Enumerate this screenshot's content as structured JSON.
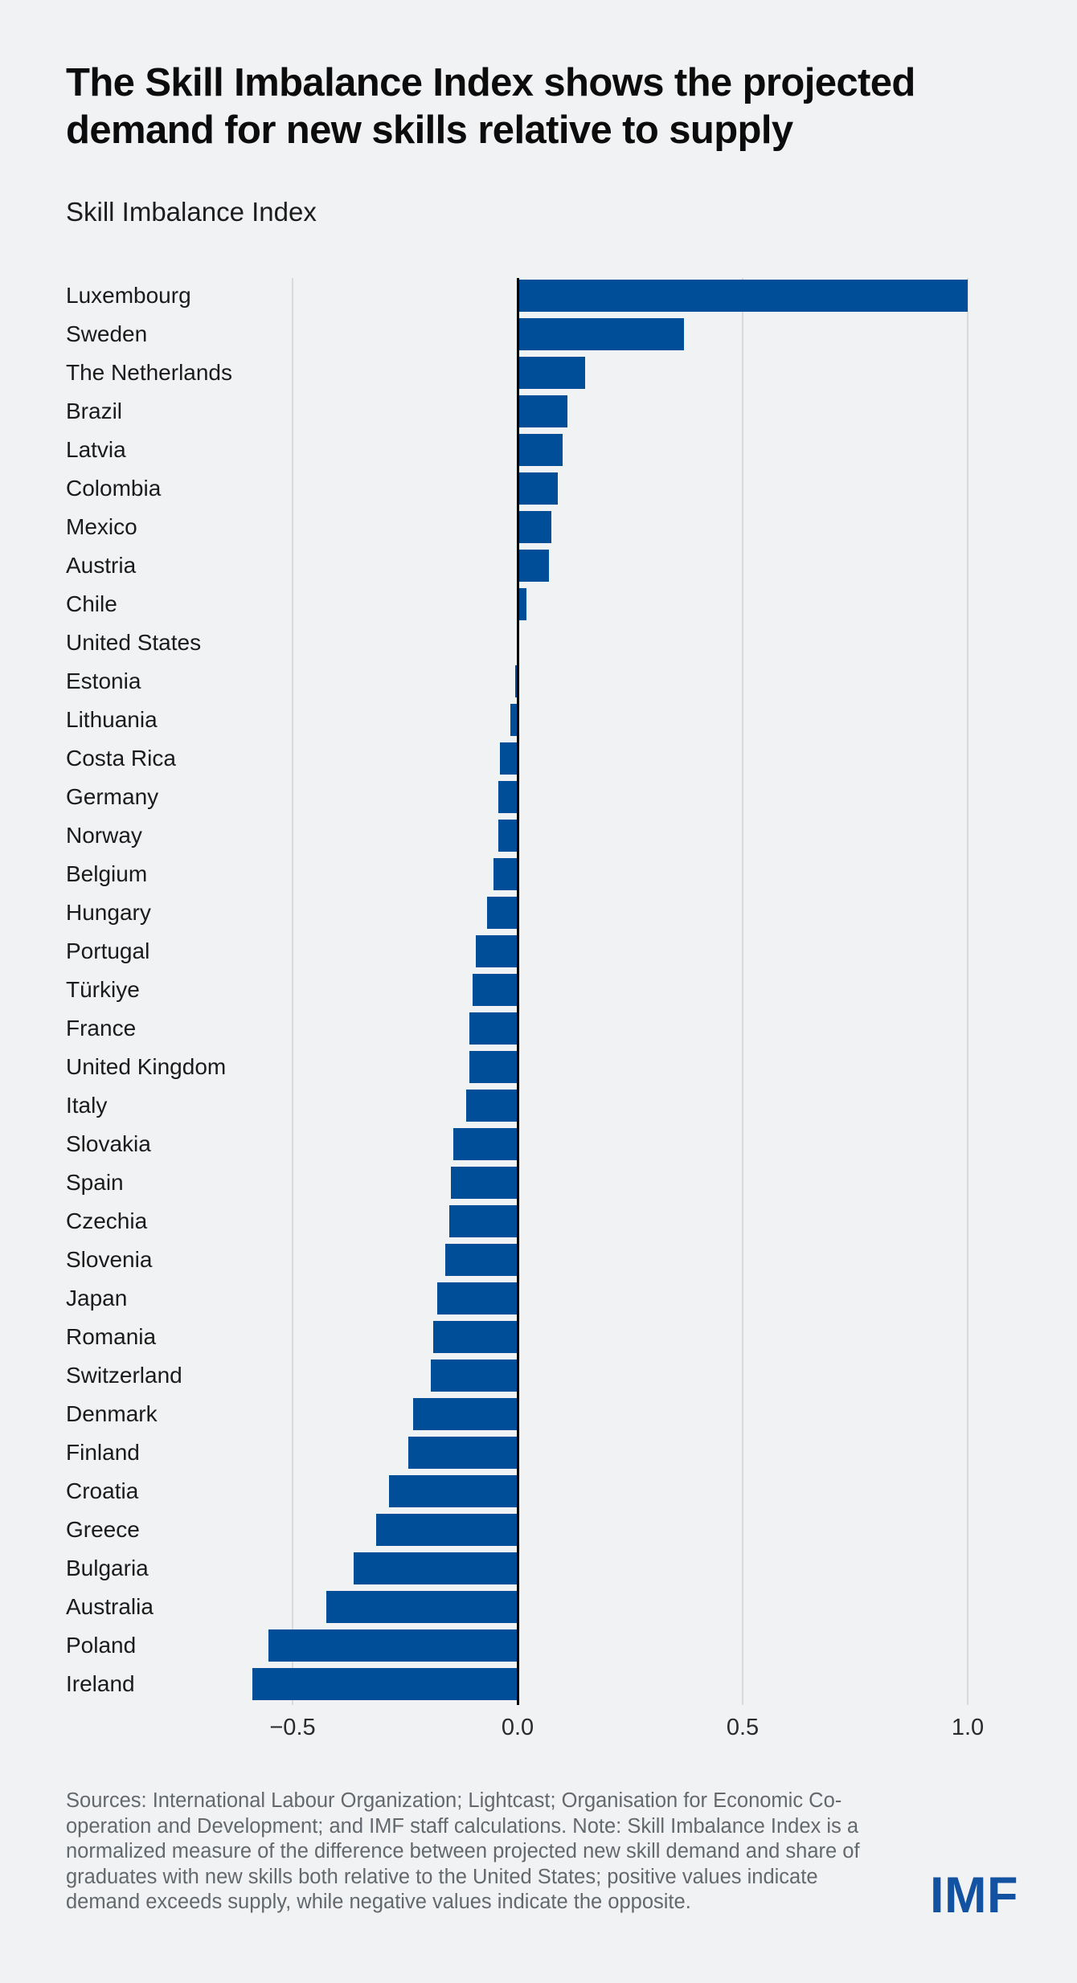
{
  "title": {
    "line1": "The Skill Imbalance Index shows the projected",
    "line2": "demand for new skills relative to supply"
  },
  "subtitle": "Skill Imbalance Index",
  "chart_data": {
    "type": "bar",
    "orientation": "horizontal",
    "title": "The Skill Imbalance Index shows the projected demand for new skills relative to supply",
    "axis_title": "Skill Imbalance Index",
    "xlim": [
      -0.66,
      1.07
    ],
    "grid": "vertical",
    "bar_color": "#004e98",
    "gridline_color": "#d8dbde",
    "zero_line_color": "#000000",
    "ticks": [
      {
        "label": "−0.5",
        "value": -0.5
      },
      {
        "label": "0.0",
        "value": 0.0
      },
      {
        "label": "0.5",
        "value": 0.5
      },
      {
        "label": "1.0",
        "value": 1.0
      }
    ],
    "categories": [
      "Luxembourg",
      "Sweden",
      "The Netherlands",
      "Brazil",
      "Latvia",
      "Colombia",
      "Mexico",
      "Austria",
      "Chile",
      "United States",
      "Estonia",
      "Lithuania",
      "Costa Rica",
      "Germany",
      "Norway",
      "Belgium",
      "Hungary",
      "Portugal",
      "Türkiye",
      "France",
      "United Kingdom",
      "Italy",
      "Slovakia",
      "Spain",
      "Czechia",
      "Slovenia",
      "Japan",
      "Romania",
      "Switzerland",
      "Denmark",
      "Finland",
      "Croatia",
      "Greece",
      "Bulgaria",
      "Australia",
      "Poland",
      "Ireland"
    ],
    "values": [
      1.0,
      0.37,
      0.15,
      0.11,
      0.1,
      0.09,
      0.075,
      0.07,
      0.02,
      0.002,
      -0.005,
      -0.016,
      -0.04,
      -0.043,
      -0.043,
      -0.054,
      -0.067,
      -0.093,
      -0.1,
      -0.107,
      -0.107,
      -0.115,
      -0.142,
      -0.149,
      -0.151,
      -0.161,
      -0.178,
      -0.188,
      -0.192,
      -0.233,
      -0.243,
      -0.286,
      -0.314,
      -0.364,
      -0.425,
      -0.554,
      -0.59
    ]
  },
  "footer": {
    "lines": [
      "Sources: International Labour Organization; Lightcast; Organisation for Economic Co-",
      "operation and Development; and IMF staff calculations. Note: Skill Imbalance Index is a",
      "normalized measure of the difference between projected new skill demand and share of",
      "graduates with new skills both relative to the United States; positive values indicate",
      "demand exceeds supply, while negative values indicate the opposite."
    ]
  },
  "logo": "IMF"
}
